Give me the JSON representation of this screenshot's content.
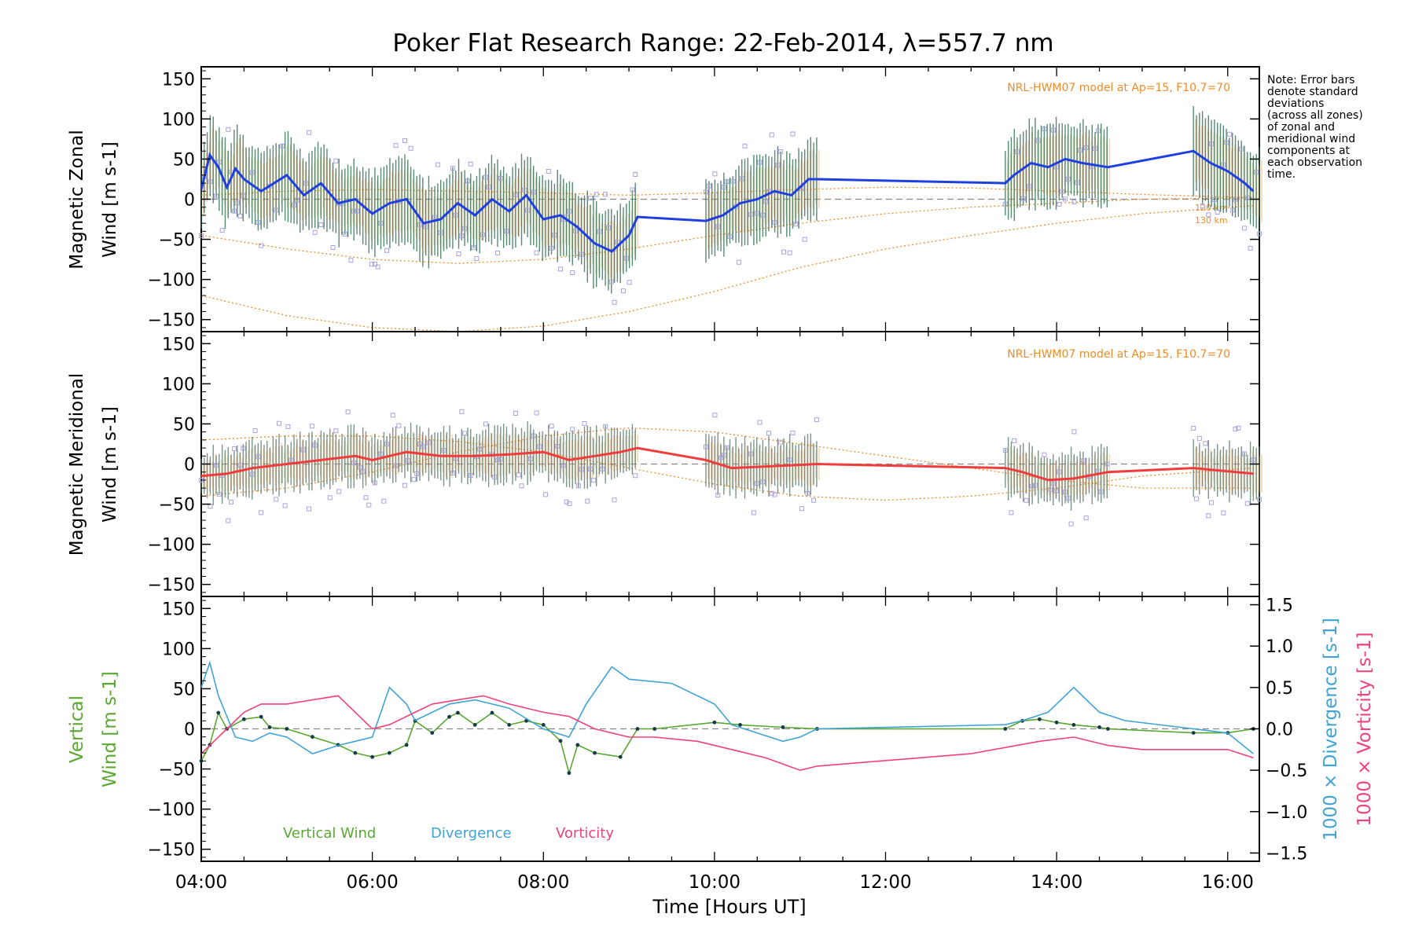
{
  "chart_data": {
    "title": "Poker Flat Research Range: 22-Feb-2014, λ=557.7 nm",
    "xlabel": "Time [Hours UT]",
    "x_ticks": [
      "04:00",
      "06:00",
      "08:00",
      "10:00",
      "12:00",
      "14:00",
      "16:00"
    ],
    "note": [
      "Note: Error bars",
      "denote standard",
      "deviations",
      "(across all zones)",
      "of zonal and",
      "meridional wind",
      "components at",
      "each observation",
      "time."
    ],
    "panels": [
      {
        "type": "line",
        "ylabel_line1": "Magnetic Zonal",
        "ylabel_line2": "Wind [m s-1]",
        "ylim": [
          -165,
          165
        ],
        "y_ticks": [
          "150",
          "100",
          "50",
          "0",
          "−50",
          "−100",
          "−150"
        ],
        "model_label": "NRL-HWM07 model at Ap=15, F10.7=70",
        "level_labels": [
          "120 km",
          "130 km"
        ],
        "series": [
          {
            "color": "#1f3fe0",
            "x": [
              4.0,
              4.1,
              4.2,
              4.3,
              4.4,
              4.5,
              4.7,
              5.0,
              5.2,
              5.4,
              5.6,
              5.8,
              6.0,
              6.2,
              6.4,
              6.6,
              6.8,
              7.0,
              7.2,
              7.4,
              7.6,
              7.8,
              8.0,
              8.2,
              8.4,
              8.6,
              8.8,
              9.0,
              9.1,
              9.9,
              10.1,
              10.3,
              10.5,
              10.7,
              10.9,
              11.1,
              11.2,
              13.4,
              13.5,
              13.7,
              13.9,
              14.1,
              14.3,
              14.6,
              15.6,
              15.8,
              16.0,
              16.2,
              16.3
            ],
            "y": [
              12,
              55,
              40,
              15,
              38,
              25,
              10,
              30,
              5,
              20,
              -5,
              0,
              -18,
              -5,
              0,
              -30,
              -25,
              -5,
              -20,
              0,
              -15,
              5,
              -25,
              -20,
              -35,
              -55,
              -65,
              -45,
              -22,
              -27,
              -20,
              -5,
              0,
              10,
              5,
              25,
              25,
              20,
              30,
              45,
              40,
              50,
              45,
              40,
              60,
              45,
              35,
              20,
              10
            ]
          }
        ],
        "model_curves": [
          {
            "name": "",
            "x": [
              4.0,
              5.0,
              6.0,
              7.0,
              8.0,
              9.0,
              10.0,
              11.0,
              12.0,
              13.0,
              14.0,
              15.0,
              16.3
            ],
            "y": [
              -45,
              -62,
              -75,
              -80,
              -75,
              -62,
              -45,
              -30,
              -18,
              -10,
              -5,
              0,
              2
            ]
          },
          {
            "name": "",
            "x": [
              4.0,
              5.0,
              6.0,
              7.0,
              8.0,
              9.0,
              10.0,
              11.0,
              12.0,
              13.0,
              14.0,
              15.0,
              16.3
            ],
            "y": [
              -120,
              -145,
              -160,
              -165,
              -158,
              -140,
              -115,
              -85,
              -62,
              -45,
              -30,
              -18,
              -8
            ]
          },
          {
            "name": "",
            "x": [
              4.0,
              5.0,
              6.0,
              7.0,
              8.0,
              9.0,
              10.0,
              11.0,
              12.0,
              13.0,
              14.0,
              15.0,
              16.3
            ],
            "y": [
              5,
              10,
              12,
              10,
              8,
              5,
              8,
              12,
              15,
              14,
              10,
              6,
              2
            ]
          }
        ]
      },
      {
        "type": "line",
        "ylabel_line1": "Magnetic Meridional",
        "ylabel_line2": "Wind [m s-1]",
        "ylim": [
          -165,
          165
        ],
        "y_ticks": [
          "150",
          "100",
          "50",
          "0",
          "−50",
          "−100",
          "−150"
        ],
        "model_label": "NRL-HWM07 model at Ap=15, F10.7=70",
        "series": [
          {
            "color": "#f03c3c",
            "x": [
              4.0,
              4.3,
              4.6,
              5.0,
              5.4,
              5.8,
              6.0,
              6.4,
              6.8,
              7.2,
              7.6,
              8.0,
              8.3,
              8.6,
              8.9,
              9.1,
              9.9,
              10.2,
              10.6,
              11.2,
              13.4,
              13.6,
              13.9,
              14.2,
              14.6,
              15.6,
              15.9,
              16.3
            ],
            "y": [
              -15,
              -12,
              -5,
              0,
              5,
              10,
              5,
              15,
              10,
              10,
              12,
              15,
              5,
              10,
              15,
              20,
              5,
              -5,
              -3,
              0,
              -5,
              -10,
              -20,
              -18,
              -10,
              -5,
              -8,
              -12
            ]
          }
        ],
        "model_curves": [
          {
            "name": "",
            "x": [
              4.0,
              5.0,
              6.0,
              7.0,
              8.0,
              9.0,
              10.0,
              11.0,
              12.0,
              13.0,
              14.0,
              15.0,
              16.3
            ],
            "y": [
              -40,
              -30,
              -10,
              15,
              35,
              45,
              40,
              25,
              10,
              -5,
              -20,
              -30,
              -30
            ]
          },
          {
            "name": "",
            "x": [
              4.0,
              5.0,
              6.0,
              7.0,
              8.0,
              9.0,
              10.0,
              11.0,
              12.0,
              13.0,
              14.0,
              15.0,
              16.3
            ],
            "y": [
              30,
              35,
              35,
              28,
              15,
              -5,
              -25,
              -40,
              -45,
              -40,
              -30,
              -15,
              -5
            ]
          }
        ]
      },
      {
        "type": "line",
        "ylabel_line1": "Vertical",
        "ylabel_line2": "Wind [m s-1]",
        "ylabel_color": "#5aa832",
        "ylim": [
          -165,
          165
        ],
        "y_ticks": [
          "150",
          "100",
          "50",
          "0",
          "−50",
          "−100",
          "−150"
        ],
        "right_ylim": [
          -1.6,
          1.6
        ],
        "right_ticks": [
          "1.5",
          "1.0",
          "0.5",
          "0.0",
          "−0.5",
          "−1.0",
          "−1.5"
        ],
        "right_label_div": "1000 × Divergence [s-1]",
        "right_label_vor": "1000 × Vorticity [s-1]",
        "legend": [
          "Vertical Wind",
          "Divergence",
          "Vorticity"
        ],
        "series": [
          {
            "name": "Vertical Wind",
            "color": "#5aa832",
            "axis": "left",
            "x": [
              4.0,
              4.1,
              4.2,
              4.3,
              4.5,
              4.7,
              4.8,
              5.0,
              5.3,
              5.6,
              5.8,
              6.0,
              6.2,
              6.4,
              6.5,
              6.7,
              6.9,
              7.0,
              7.2,
              7.4,
              7.6,
              7.8,
              8.0,
              8.2,
              8.3,
              8.4,
              8.6,
              8.9,
              9.1,
              9.3,
              10.0,
              10.3,
              10.8,
              11.2,
              13.4,
              13.6,
              13.8,
              14.0,
              14.2,
              14.5,
              14.6,
              15.6,
              16.0,
              16.3
            ],
            "y": [
              -40,
              -20,
              20,
              0,
              12,
              15,
              2,
              0,
              -10,
              -20,
              -30,
              -35,
              -30,
              -20,
              10,
              -5,
              15,
              20,
              5,
              20,
              5,
              10,
              5,
              -15,
              -55,
              -20,
              -30,
              -35,
              0,
              0,
              8,
              5,
              2,
              0,
              0,
              10,
              12,
              8,
              5,
              2,
              0,
              -5,
              -5,
              0
            ]
          },
          {
            "name": "Divergence",
            "color": "#3fa3d6",
            "axis": "right",
            "x": [
              4.0,
              4.1,
              4.2,
              4.4,
              4.6,
              4.8,
              5.0,
              5.3,
              5.6,
              5.8,
              6.0,
              6.2,
              6.4,
              6.5,
              6.7,
              6.9,
              7.2,
              7.6,
              8.0,
              8.3,
              8.5,
              8.8,
              9.0,
              9.5,
              10.0,
              10.2,
              10.8,
              11.0,
              11.2,
              13.4,
              13.6,
              13.9,
              14.2,
              14.5,
              14.8,
              15.6,
              16.0,
              16.3
            ],
            "y": [
              0.5,
              0.8,
              0.4,
              -0.1,
              -0.15,
              -0.05,
              -0.1,
              -0.3,
              -0.2,
              -0.15,
              -0.1,
              0.5,
              0.3,
              0.1,
              0.2,
              0.3,
              0.35,
              0.25,
              0.0,
              -0.1,
              0.3,
              0.75,
              0.6,
              0.55,
              0.3,
              0.05,
              -0.15,
              -0.1,
              0.0,
              0.05,
              0.1,
              0.2,
              0.5,
              0.2,
              0.1,
              0.0,
              -0.05,
              -0.3
            ]
          },
          {
            "name": "Vorticity",
            "color": "#f0417a",
            "axis": "right",
            "x": [
              4.0,
              4.1,
              4.3,
              4.5,
              4.7,
              5.0,
              5.3,
              5.6,
              5.8,
              6.0,
              6.2,
              6.5,
              6.7,
              7.0,
              7.3,
              7.6,
              8.0,
              8.3,
              8.6,
              9.0,
              9.3,
              9.8,
              10.2,
              10.6,
              11.0,
              11.2,
              13.0,
              13.8,
              14.2,
              14.6,
              15.0,
              15.6,
              16.0,
              16.3
            ],
            "y": [
              -0.3,
              -0.2,
              0.0,
              0.2,
              0.3,
              0.3,
              0.35,
              0.4,
              0.2,
              0.0,
              0.05,
              0.2,
              0.3,
              0.35,
              0.4,
              0.3,
              0.2,
              0.15,
              0.0,
              -0.1,
              -0.1,
              -0.15,
              -0.25,
              -0.35,
              -0.5,
              -0.45,
              -0.3,
              -0.15,
              -0.1,
              -0.2,
              -0.25,
              -0.25,
              -0.25,
              -0.35
            ]
          }
        ]
      }
    ]
  }
}
